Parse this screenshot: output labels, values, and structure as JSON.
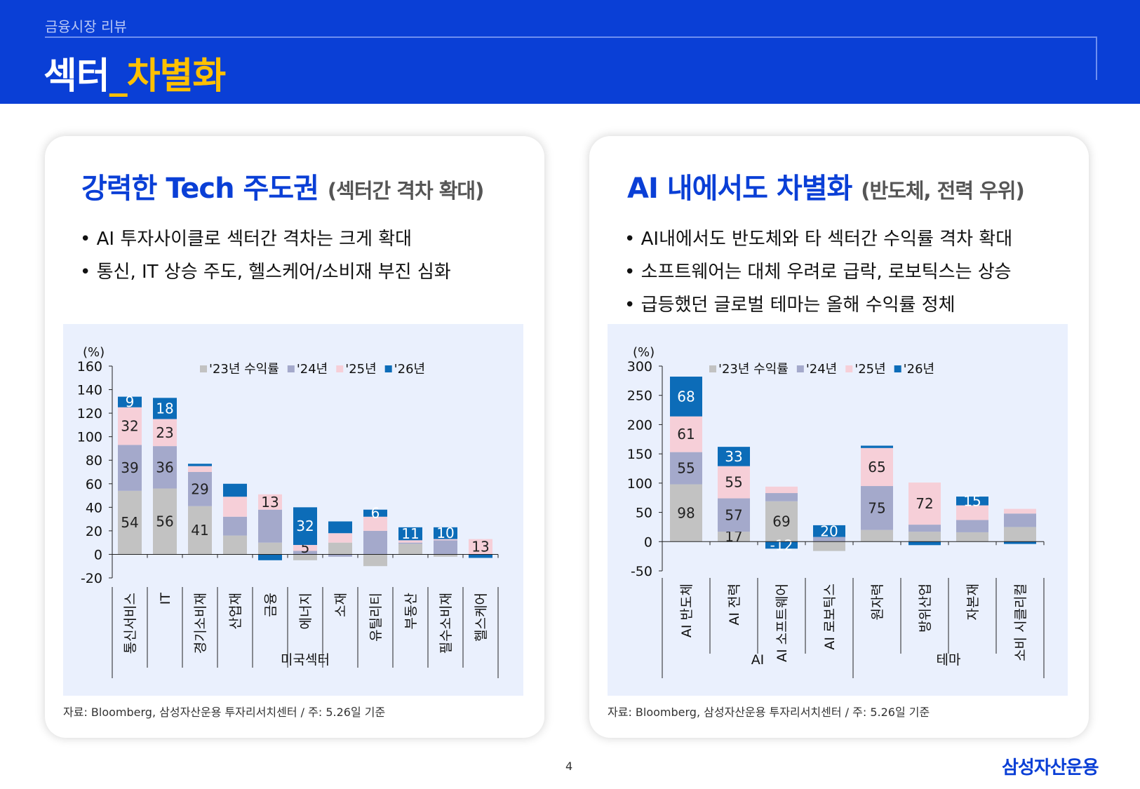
{
  "header": {
    "subtitle": "금융시장 리뷰",
    "title_main": "섹터",
    "title_accent": "_차별화"
  },
  "left_card": {
    "title": "강력한 Tech 주도권",
    "title_sub": "(섹터간 격차 확대)",
    "bullets": [
      "AI 투자사이클로 섹터간 격차는 크게 확대",
      "통신, IT 상승 주도, 헬스케어/소비재 부진 심화"
    ],
    "source": "자료: Bloomberg, 삼성자산운용 투자리서치센터 / 주: 5.26일 기준"
  },
  "right_card": {
    "title": "AI 내에서도 차별화",
    "title_sub": "(반도체, 전력 우위)",
    "bullets": [
      "AI내에서도 반도체와 타 섹터간 수익률 격차 확대",
      "소프트웨어는 대체 우려로 급락, 로보틱스는 상승",
      "급등했던 글로벌 테마는 올해 수익률 정체"
    ],
    "source": "자료: Bloomberg, 삼성자산운용 투자리서치센터 / 주: 5.26일 기준"
  },
  "colors": {
    "y23": "#c2c2c2",
    "y24": "#a4a9cb",
    "y25": "#f6cfd8",
    "y26": "#0c6cb8",
    "brand": "#0a3fd6",
    "accent": "#ffc000"
  },
  "chart_data": [
    {
      "type": "bar",
      "stacked": true,
      "ylabel": "(%)",
      "ylim": [
        -20,
        160
      ],
      "yticks": [
        -20,
        0,
        20,
        40,
        60,
        80,
        100,
        120,
        140,
        160
      ],
      "categories": [
        "통신서비스",
        "IT",
        "경기소비재",
        "산업재",
        "금융",
        "에너지",
        "소재",
        "유틸리티",
        "부동산",
        "필수소비재",
        "헬스케어"
      ],
      "groups": [
        {
          "label": "미국섹터",
          "start": 0,
          "end": 10
        }
      ],
      "series": [
        {
          "name": "'23년 수익률",
          "values": [
            54,
            56,
            41,
            16,
            10,
            -5,
            10,
            -10,
            9,
            -2,
            0
          ]
        },
        {
          "name": "'24년",
          "values": [
            39,
            36,
            29,
            16,
            28,
            3,
            -2,
            20,
            1,
            12,
            0
          ]
        },
        {
          "name": "'25년",
          "values": [
            32,
            23,
            5,
            17,
            13,
            5,
            8,
            12,
            2,
            1,
            13
          ]
        },
        {
          "name": "'26년",
          "values": [
            9,
            18,
            2,
            11,
            -5,
            32,
            10,
            6,
            11,
            10,
            -3
          ]
        }
      ],
      "labels": [
        [
          "54",
          "39",
          "32",
          "9"
        ],
        [
          "56",
          "36",
          "23",
          "18"
        ],
        [
          "41",
          "29",
          "",
          ""
        ],
        [
          "",
          "",
          "",
          ""
        ],
        [
          "",
          "",
          "13",
          ""
        ],
        [
          "",
          "",
          "5",
          "32"
        ],
        [
          "",
          "",
          "",
          ""
        ],
        [
          "",
          "",
          "",
          "6"
        ],
        [
          "",
          "",
          "",
          "11"
        ],
        [
          "",
          "",
          "",
          "10"
        ],
        [
          "",
          "",
          "13",
          ""
        ]
      ],
      "legend": "top"
    },
    {
      "type": "bar",
      "stacked": true,
      "ylabel": "(%)",
      "ylim": [
        -50,
        300
      ],
      "yticks": [
        -50,
        0,
        50,
        100,
        150,
        200,
        250,
        300
      ],
      "categories": [
        "AI 반도체",
        "AI 전력",
        "AI 소프트웨어",
        "AI 로보틱스",
        "원자력",
        "방위산업",
        "자본재",
        "소비 시클리컬"
      ],
      "groups": [
        {
          "label": "AI",
          "start": 0,
          "end": 3
        },
        {
          "label": "테마",
          "start": 4,
          "end": 7
        }
      ],
      "series": [
        {
          "name": "'23년 수익률",
          "values": [
            98,
            17,
            69,
            -16,
            20,
            17,
            16,
            25
          ]
        },
        {
          "name": "'24년",
          "values": [
            55,
            57,
            14,
            8,
            75,
            12,
            21,
            23
          ]
        },
        {
          "name": "'25년",
          "values": [
            61,
            55,
            11,
            0,
            65,
            72,
            25,
            8
          ]
        },
        {
          "name": "'26년",
          "values": [
            68,
            33,
            -12,
            20,
            4,
            -6,
            15,
            -4
          ]
        }
      ],
      "labels": [
        [
          "98",
          "55",
          "61",
          "68"
        ],
        [
          "17",
          "57",
          "55",
          "33"
        ],
        [
          "69",
          "",
          "",
          "-12"
        ],
        [
          "",
          "",
          "",
          "20"
        ],
        [
          "",
          "75",
          "65",
          ""
        ],
        [
          "",
          "",
          "72",
          ""
        ],
        [
          "",
          "",
          "",
          "15"
        ],
        [
          "",
          "",
          "",
          ""
        ]
      ],
      "legend": "top"
    }
  ],
  "footer": {
    "page": "4",
    "logo": "삼성자산운용"
  }
}
